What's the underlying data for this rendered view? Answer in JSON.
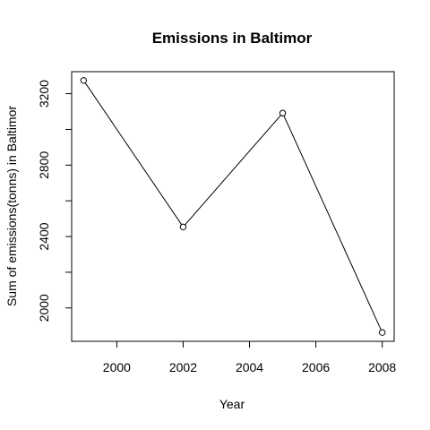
{
  "chart_data": {
    "type": "line",
    "title": "Emissions in Baltimor",
    "xlabel": "Year",
    "ylabel": "Sum of emissions(tonns) in Baltimor",
    "x": [
      1999,
      2002,
      2005,
      2008
    ],
    "series": [
      {
        "values": [
          3274.2,
          2453.9,
          3091.4,
          1862.3
        ]
      }
    ],
    "xticks": [
      2000,
      2002,
      2004,
      2006,
      2008
    ],
    "yticks": [
      2000,
      2400,
      2800,
      3200
    ],
    "xlim": [
      1998.64,
      2008.36
    ],
    "ylim": [
      1813.1,
      3323.4
    ],
    "markers": "open-circle",
    "line_color": "#000000",
    "grid": false,
    "legend": "none"
  }
}
